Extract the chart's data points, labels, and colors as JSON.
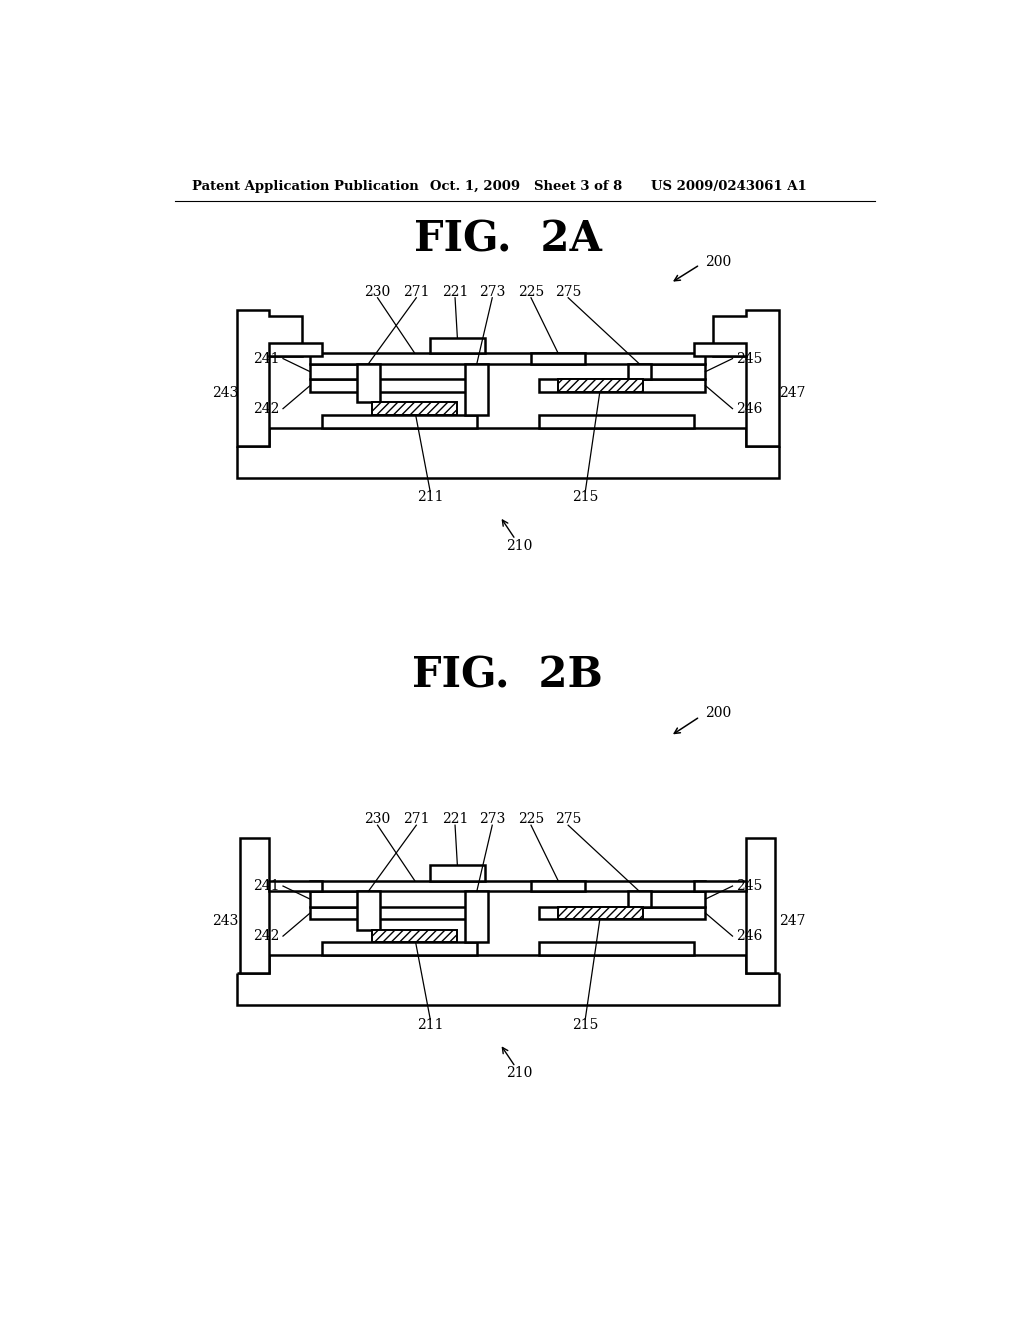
{
  "bg_color": "#ffffff",
  "header_left": "Patent Application Publication",
  "header_mid": "Oct. 1, 2009   Sheet 3 of 8",
  "header_right": "US 2009/0243061 A1",
  "fig2a_title": "FIG.  2A",
  "fig2b_title": "FIG.  2B"
}
